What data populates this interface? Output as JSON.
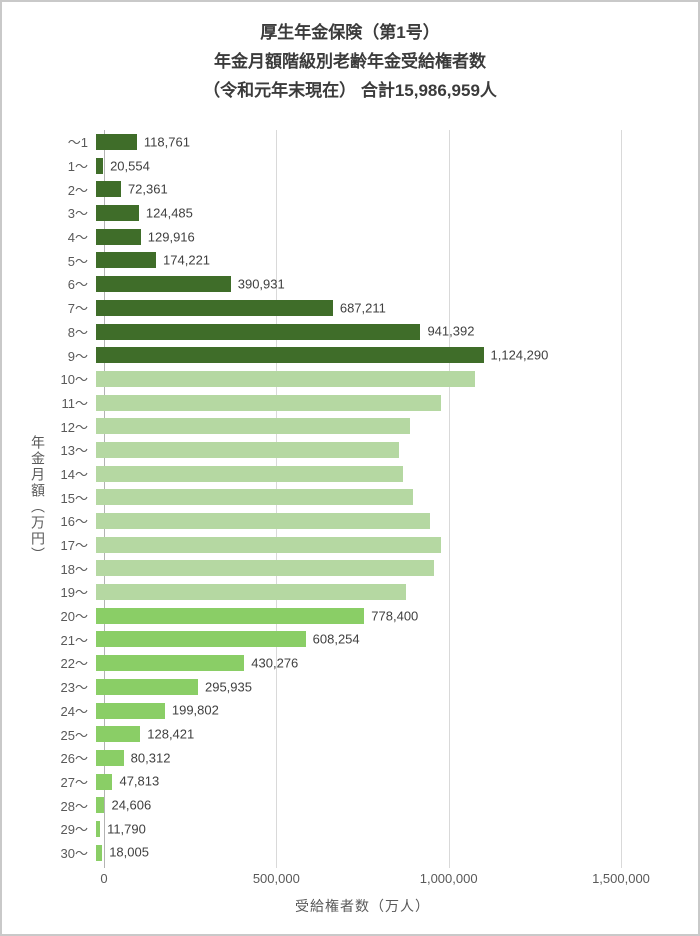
{
  "header": {
    "line1": "厚生年金保険（第1号）",
    "line2": "年金月額階級別老齢年金受給権者数",
    "line3": "（令和元年末現在） 合計15,986,959人"
  },
  "axes": {
    "y_title": "年金月額（万円）",
    "x_title": "受給権者数（万人）"
  },
  "colors": {
    "dark_green": "#3f6d29",
    "light_green": "#b5d8a2",
    "bright_green": "#8ace66",
    "grid": "#d9d9d9",
    "zero_line": "#b3b3b3",
    "value_text": "#404040",
    "axis_text": "#595959"
  },
  "chart_data": {
    "type": "bar",
    "orientation": "horizontal",
    "title": "厚生年金保険（第1号）年金月額階級別老齢年金受給権者数（令和元年末現在）合計15,986,959人",
    "xlabel": "受給権者数（万人）",
    "ylabel": "年金月額（万円）",
    "xlim": [
      0,
      1500000
    ],
    "x_tick_values": [
      0,
      500000,
      1000000,
      1500000
    ],
    "x_tick_labels": [
      "0",
      "500,000",
      "1,000,000",
      "1,500,000"
    ],
    "categories": [
      "〜1",
      "1〜",
      "2〜",
      "3〜",
      "4〜",
      "5〜",
      "6〜",
      "7〜",
      "8〜",
      "9〜",
      "10〜",
      "11〜",
      "12〜",
      "13〜",
      "14〜",
      "15〜",
      "16〜",
      "17〜",
      "18〜",
      "19〜",
      "20〜",
      "21〜",
      "22〜",
      "23〜",
      "24〜",
      "25〜",
      "26〜",
      "27〜",
      "28〜",
      "29〜",
      "30〜"
    ],
    "values": [
      118761,
      20554,
      72361,
      124485,
      129916,
      174221,
      390931,
      687211,
      941392,
      1124290,
      1100000,
      1000000,
      910000,
      880000,
      890000,
      920000,
      970000,
      1000000,
      980000,
      900000,
      778400,
      608254,
      430276,
      295935,
      199802,
      128421,
      80312,
      47813,
      24606,
      11790,
      18005
    ],
    "value_labels": [
      "118,761",
      "20,554",
      "72,361",
      "124,485",
      "129,916",
      "174,221",
      "390,931",
      "687,211",
      "941,392",
      "1,124,290",
      null,
      null,
      null,
      null,
      null,
      null,
      null,
      null,
      null,
      null,
      "778,400",
      "608,254",
      "430,276",
      "295,935",
      "199,802",
      "128,421",
      "80,312",
      "47,813",
      "24,606",
      "11,790",
      "18,005"
    ],
    "groups": [
      "dark",
      "dark",
      "dark",
      "dark",
      "dark",
      "dark",
      "dark",
      "dark",
      "dark",
      "dark",
      "light",
      "light",
      "light",
      "light",
      "light",
      "light",
      "light",
      "light",
      "light",
      "light",
      "bright",
      "bright",
      "bright",
      "bright",
      "bright",
      "bright",
      "bright",
      "bright",
      "bright",
      "bright",
      "bright"
    ],
    "group_colors": {
      "dark": "#3f6d29",
      "light": "#b5d8a2",
      "bright": "#8ace66"
    }
  }
}
